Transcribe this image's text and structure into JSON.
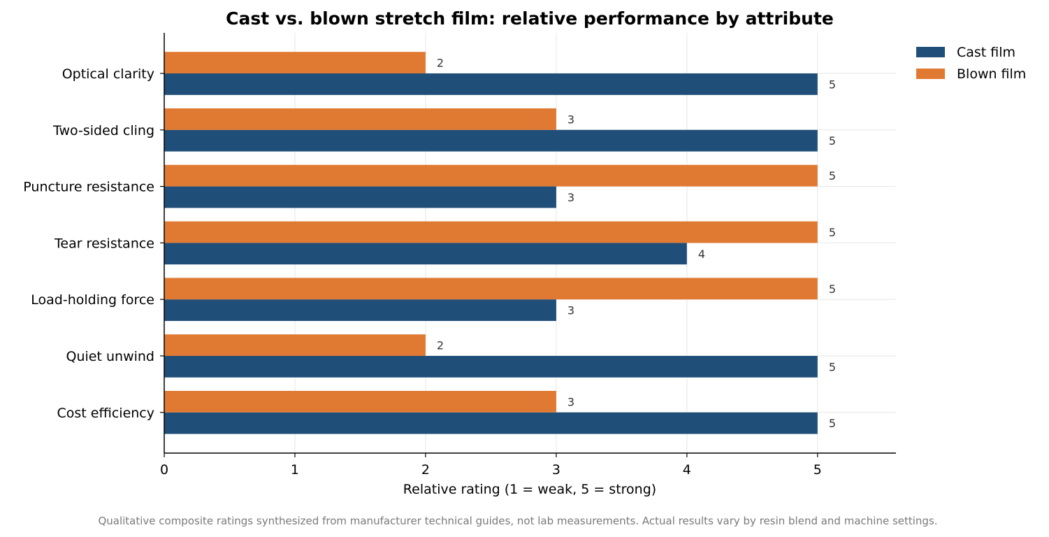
{
  "chart_data": {
    "type": "bar",
    "orientation": "horizontal",
    "title": "Cast vs. blown stretch film: relative performance by attribute",
    "xlabel": "Relative rating (1 = weak, 5 = strong)",
    "ylabel": "",
    "categories": [
      "Optical clarity",
      "Two-sided cling",
      "Puncture resistance",
      "Tear resistance",
      "Load-holding force",
      "Quiet unwind",
      "Cost efficiency"
    ],
    "series": [
      {
        "name": "Cast film",
        "color": "#1f4e79",
        "values": [
          5,
          5,
          3,
          4,
          3,
          5,
          5
        ]
      },
      {
        "name": "Blown film",
        "color": "#e07a33",
        "values": [
          2,
          3,
          5,
          5,
          5,
          2,
          3
        ]
      }
    ],
    "xlim": [
      0,
      5.6
    ],
    "xticks": [
      "0",
      "1",
      "2",
      "3",
      "4",
      "5"
    ],
    "grid": true,
    "legend_position": "top-right, outside plot",
    "footnote": "Qualitative composite ratings synthesized from manufacturer technical guides, not lab measurements. Actual results vary by resin blend and machine settings."
  }
}
